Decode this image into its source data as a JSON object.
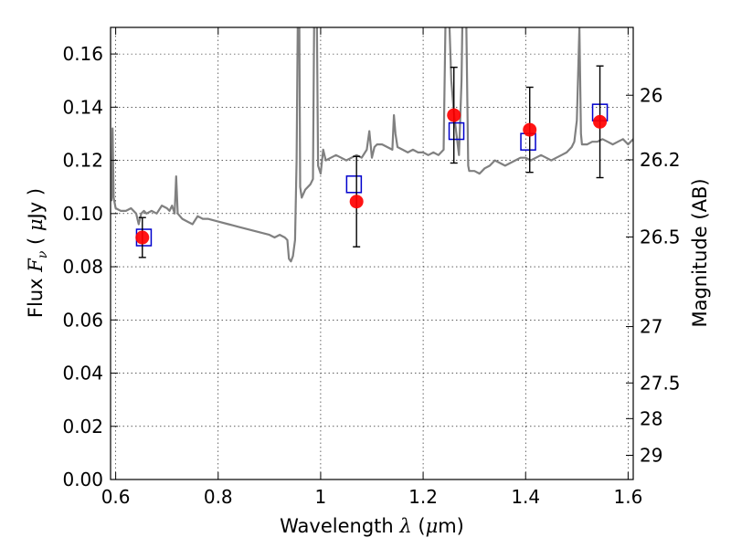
{
  "chart_data": {
    "type": "scatter",
    "xlabel": "Wavelength  λ (μm)",
    "ylabel": "Flux  Fν  ( μJy )",
    "ylabel_right": "Magnitude (AB)",
    "xlim": [
      0.59,
      1.61
    ],
    "ylim": [
      0.0,
      0.17
    ],
    "grid": true,
    "x_ticks": [
      0.6,
      0.8,
      1.0,
      1.2,
      1.4,
      1.6
    ],
    "x_tick_labels": [
      "0.6",
      "0.8",
      "1",
      "1.2",
      "1.4",
      "1.6"
    ],
    "y_ticks": [
      0.0,
      0.02,
      0.04,
      0.06,
      0.08,
      0.1,
      0.12,
      0.14,
      0.16
    ],
    "y_tick_labels": [
      "0.00",
      "0.02",
      "0.04",
      "0.06",
      "0.08",
      "0.10",
      "0.12",
      "0.14",
      "0.16"
    ],
    "right_ticks": [
      {
        "label": "26",
        "flux": 0.1445
      },
      {
        "label": "26.2",
        "flux": 0.1202
      },
      {
        "label": "26.5",
        "flux": 0.0912
      },
      {
        "label": "27",
        "flux": 0.0575
      },
      {
        "label": "27.5",
        "flux": 0.0363
      },
      {
        "label": "28",
        "flux": 0.0229
      },
      {
        "label": "29",
        "flux": 0.0091
      }
    ],
    "series": [
      {
        "kind": "line",
        "color": "#808080",
        "points": [
          [
            0.59,
            0.107
          ],
          [
            0.592,
            0.105
          ],
          [
            0.594,
            0.132
          ],
          [
            0.596,
            0.106
          ],
          [
            0.6,
            0.102
          ],
          [
            0.61,
            0.101
          ],
          [
            0.62,
            0.101
          ],
          [
            0.63,
            0.102
          ],
          [
            0.64,
            0.1
          ],
          [
            0.645,
            0.096
          ],
          [
            0.65,
            0.1
          ],
          [
            0.655,
            0.101
          ],
          [
            0.66,
            0.1
          ],
          [
            0.67,
            0.101
          ],
          [
            0.68,
            0.1
          ],
          [
            0.69,
            0.103
          ],
          [
            0.7,
            0.102
          ],
          [
            0.705,
            0.101
          ],
          [
            0.71,
            0.103
          ],
          [
            0.715,
            0.1
          ],
          [
            0.718,
            0.114
          ],
          [
            0.721,
            0.1
          ],
          [
            0.73,
            0.098
          ],
          [
            0.74,
            0.097
          ],
          [
            0.75,
            0.096
          ],
          [
            0.76,
            0.099
          ],
          [
            0.77,
            0.098
          ],
          [
            0.78,
            0.098
          ],
          [
            0.8,
            0.097
          ],
          [
            0.82,
            0.096
          ],
          [
            0.84,
            0.095
          ],
          [
            0.86,
            0.094
          ],
          [
            0.88,
            0.093
          ],
          [
            0.9,
            0.092
          ],
          [
            0.91,
            0.091
          ],
          [
            0.92,
            0.092
          ],
          [
            0.93,
            0.091
          ],
          [
            0.935,
            0.09
          ],
          [
            0.938,
            0.083
          ],
          [
            0.942,
            0.082
          ],
          [
            0.946,
            0.084
          ],
          [
            0.95,
            0.09
          ],
          [
            0.953,
            0.12
          ],
          [
            0.956,
            0.185
          ],
          [
            0.958,
            0.185
          ],
          [
            0.96,
            0.11
          ],
          [
            0.963,
            0.106
          ],
          [
            0.97,
            0.109
          ],
          [
            0.98,
            0.111
          ],
          [
            0.985,
            0.113
          ],
          [
            0.988,
            0.19
          ],
          [
            0.992,
            0.19
          ],
          [
            0.995,
            0.118
          ],
          [
            1.0,
            0.115
          ],
          [
            1.005,
            0.124
          ],
          [
            1.01,
            0.12
          ],
          [
            1.02,
            0.121
          ],
          [
            1.03,
            0.122
          ],
          [
            1.04,
            0.121
          ],
          [
            1.05,
            0.12
          ],
          [
            1.06,
            0.121
          ],
          [
            1.07,
            0.122
          ],
          [
            1.08,
            0.121
          ],
          [
            1.09,
            0.124
          ],
          [
            1.095,
            0.131
          ],
          [
            1.1,
            0.121
          ],
          [
            1.105,
            0.125
          ],
          [
            1.11,
            0.126
          ],
          [
            1.12,
            0.126
          ],
          [
            1.13,
            0.125
          ],
          [
            1.14,
            0.124
          ],
          [
            1.143,
            0.137
          ],
          [
            1.146,
            0.13
          ],
          [
            1.15,
            0.125
          ],
          [
            1.16,
            0.124
          ],
          [
            1.17,
            0.123
          ],
          [
            1.18,
            0.124
          ],
          [
            1.19,
            0.123
          ],
          [
            1.2,
            0.123
          ],
          [
            1.21,
            0.122
          ],
          [
            1.22,
            0.123
          ],
          [
            1.23,
            0.122
          ],
          [
            1.24,
            0.124
          ],
          [
            1.245,
            0.19
          ],
          [
            1.248,
            0.19
          ],
          [
            1.255,
            0.15
          ],
          [
            1.26,
            0.138
          ],
          [
            1.265,
            0.13
          ],
          [
            1.27,
            0.122
          ],
          [
            1.275,
            0.15
          ],
          [
            1.278,
            0.19
          ],
          [
            1.283,
            0.19
          ],
          [
            1.288,
            0.118
          ],
          [
            1.29,
            0.116
          ],
          [
            1.3,
            0.116
          ],
          [
            1.31,
            0.115
          ],
          [
            1.32,
            0.117
          ],
          [
            1.33,
            0.118
          ],
          [
            1.34,
            0.12
          ],
          [
            1.35,
            0.119
          ],
          [
            1.36,
            0.118
          ],
          [
            1.37,
            0.119
          ],
          [
            1.38,
            0.12
          ],
          [
            1.39,
            0.121
          ],
          [
            1.4,
            0.121
          ],
          [
            1.41,
            0.12
          ],
          [
            1.42,
            0.121
          ],
          [
            1.43,
            0.122
          ],
          [
            1.44,
            0.121
          ],
          [
            1.45,
            0.12
          ],
          [
            1.46,
            0.121
          ],
          [
            1.47,
            0.122
          ],
          [
            1.48,
            0.123
          ],
          [
            1.49,
            0.125
          ],
          [
            1.495,
            0.127
          ],
          [
            1.5,
            0.135
          ],
          [
            1.505,
            0.17
          ],
          [
            1.508,
            0.13
          ],
          [
            1.51,
            0.126
          ],
          [
            1.52,
            0.126
          ],
          [
            1.53,
            0.127
          ],
          [
            1.54,
            0.127
          ],
          [
            1.55,
            0.128
          ],
          [
            1.56,
            0.127
          ],
          [
            1.57,
            0.126
          ],
          [
            1.58,
            0.127
          ],
          [
            1.59,
            0.128
          ],
          [
            1.6,
            0.126
          ],
          [
            1.61,
            0.128
          ]
        ]
      },
      {
        "kind": "model_squares",
        "color": "#0000cc",
        "points": [
          [
            0.655,
            0.091
          ],
          [
            1.065,
            0.111
          ],
          [
            1.265,
            0.131
          ],
          [
            1.405,
            0.127
          ],
          [
            1.545,
            0.138
          ]
        ]
      },
      {
        "kind": "observed",
        "color": "#ff0000",
        "points": [
          {
            "x": 0.652,
            "y": 0.091,
            "err": 0.0075
          },
          {
            "x": 1.07,
            "y": 0.1045,
            "err": 0.017
          },
          {
            "x": 1.26,
            "y": 0.137,
            "err": 0.018
          },
          {
            "x": 1.408,
            "y": 0.1315,
            "err": 0.016
          },
          {
            "x": 1.545,
            "y": 0.1345,
            "err": 0.021
          }
        ]
      }
    ]
  }
}
